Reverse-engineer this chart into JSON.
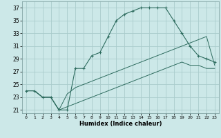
{
  "xlabel": "Humidex (Indice chaleur)",
  "bg_color": "#cce8e8",
  "grid_color": "#aacccc",
  "line_color": "#2d6b5e",
  "xlim": [
    -0.5,
    23.5
  ],
  "ylim": [
    20.5,
    38.0
  ],
  "xticks": [
    0,
    1,
    2,
    3,
    4,
    5,
    6,
    7,
    8,
    9,
    10,
    11,
    12,
    13,
    14,
    15,
    16,
    17,
    18,
    19,
    20,
    21,
    22,
    23
  ],
  "yticks": [
    21,
    23,
    25,
    27,
    29,
    31,
    33,
    35,
    37
  ],
  "series1_x": [
    0,
    1,
    2,
    3,
    4,
    5,
    6,
    7,
    8,
    9,
    10,
    11,
    12,
    13,
    14,
    15,
    16,
    17,
    18,
    19,
    20,
    21,
    22,
    23
  ],
  "series1_y": [
    24.0,
    24.0,
    23.0,
    23.0,
    21.0,
    21.0,
    27.5,
    27.5,
    29.5,
    30.0,
    32.5,
    35.0,
    36.0,
    36.5,
    37.0,
    37.0,
    37.0,
    37.0,
    35.0,
    33.0,
    31.0,
    29.5,
    29.0,
    28.5
  ],
  "series2_x": [
    0,
    1,
    2,
    3,
    4,
    5,
    6,
    7,
    8,
    9,
    10,
    11,
    12,
    13,
    14,
    15,
    16,
    17,
    18,
    19,
    20,
    21,
    22,
    23
  ],
  "series2_y": [
    24.0,
    24.0,
    23.0,
    23.0,
    21.0,
    23.5,
    24.5,
    25.0,
    25.5,
    26.0,
    26.5,
    27.0,
    27.5,
    28.0,
    28.5,
    29.0,
    29.5,
    30.0,
    30.5,
    31.0,
    31.5,
    32.0,
    32.5,
    28.0
  ],
  "series3_x": [
    0,
    1,
    2,
    3,
    4,
    5,
    6,
    7,
    8,
    9,
    10,
    11,
    12,
    13,
    14,
    15,
    16,
    17,
    18,
    19,
    20,
    21,
    22,
    23
  ],
  "series3_y": [
    24.0,
    24.0,
    23.0,
    23.0,
    21.0,
    21.5,
    22.0,
    22.5,
    23.0,
    23.5,
    24.0,
    24.5,
    25.0,
    25.5,
    26.0,
    26.5,
    27.0,
    27.5,
    28.0,
    28.5,
    28.0,
    28.0,
    27.5,
    27.5
  ]
}
